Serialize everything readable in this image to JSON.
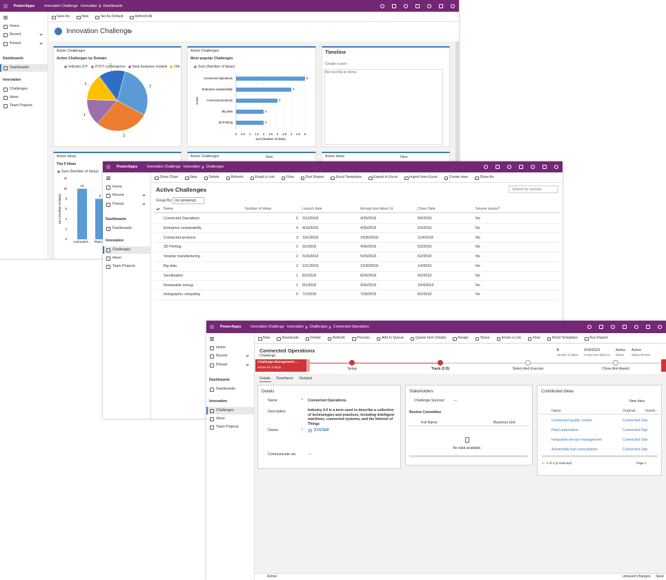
{
  "w1": {
    "app": "PowerApps",
    "appname": "Innovation Challenge",
    "crumbs": [
      "Innovation",
      "Dashboards"
    ],
    "commands": [
      "Save As",
      "New",
      "Set As Default",
      "Refresh All"
    ],
    "nav": [
      "Home",
      "Recent",
      "Pinned"
    ],
    "groups": [
      {
        "title": "Dashboards",
        "items": [
          "Dashboards"
        ]
      },
      {
        "title": "Innovation",
        "items": [
          "Challenges",
          "Ideas",
          "Team Projects"
        ]
      }
    ],
    "title": "Innovation Challenge",
    "panels": [
      "Active Challenges",
      "Active Challenges",
      "Active Ideas",
      "Active Challenges",
      "Active Ideas"
    ],
    "new": "New",
    "timeline": {
      "title": "Timeline",
      "post": "Create a post",
      "empty": "No records to show."
    },
    "pie": {
      "type": "pie",
      "title": "Active Challenges by Domain",
      "categories": [
        "Industry IOT",
        "IT/OT convergence",
        "New business models",
        "Oth",
        null
      ],
      "values": [
        2,
        2,
        1,
        1,
        1
      ],
      "colors": [
        "#5b9bd5",
        "#ed7d31",
        "#9e6fa8",
        "#ffc000",
        "#2f6ec4"
      ]
    },
    "bar": {
      "type": "bar",
      "title": "Most popular Challenges",
      "legend": "Sum (Number of ideas)",
      "categories": [
        "Connected Operations",
        "Enterprise sustainability",
        "Connected products",
        "Big data",
        "3D Printing"
      ],
      "values": [
        5,
        4,
        3,
        2,
        2
      ],
      "color": "#5b9bd5",
      "xlim": [
        0,
        5
      ],
      "xticks": [
        0,
        0.5,
        1,
        1.5,
        2,
        2.5,
        3,
        3.5,
        4,
        4.5,
        5
      ],
      "xlabel": "Sum (Number of ideas)",
      "ylabel": "Name"
    },
    "column": {
      "type": "bar",
      "title": "Top 5 Ideas",
      "legend": "Sum (Number of Ideas)",
      "categories": [
        "Connected ...",
        "Plant a..."
      ],
      "values": [
        10,
        8
      ],
      "color": "#5b9bd5",
      "ylim": [
        0,
        12
      ],
      "yticks": [
        0,
        2,
        4,
        6,
        8,
        10,
        12
      ],
      "ylabel": "Sum (Number of Ideas)"
    }
  },
  "w2": {
    "app": "PowerApps",
    "appname": "Innovation Challenge",
    "crumbs": [
      "Innovation",
      "Challenges"
    ],
    "commands": [
      "Show Chart",
      "New",
      "Delete",
      "Refresh",
      "Email a Link",
      "Flow",
      "Run Report",
      "Excel Templates",
      "Export to Excel",
      "Import from Excel",
      "Create view",
      "Show As"
    ],
    "nav": [
      "Home",
      "Recent",
      "Pinned"
    ],
    "groups": [
      {
        "title": "Dashboards",
        "items": [
          "Dashboards"
        ]
      },
      {
        "title": "Innovation",
        "items": [
          "Challenges",
          "Ideas",
          "Team Projects"
        ]
      }
    ],
    "title": "Active Challenges",
    "search": "Search for records",
    "group_by": "Group By:",
    "grouping": "(no grouping)",
    "columns": [
      "Name",
      "Number of ideas",
      "Launch date",
      "Accept new ideas Ur",
      "Close Date",
      "Severe issues?"
    ],
    "rows": [
      [
        "Connected Operations",
        5,
        "3/12/2018",
        "4/29/2018",
        "5/5/2018",
        "No"
      ],
      [
        "Enterprise sustainability",
        4,
        "4/16/2018",
        "4/30/2018",
        "5/3/2018",
        "No"
      ],
      [
        "Connected products",
        3,
        "10/1/2018",
        "10/30/2018",
        "11/4/2018",
        "No"
      ],
      [
        "3D Printing",
        2,
        "3/1/2018",
        "4/30/2018",
        "5/3/2018",
        "No"
      ],
      [
        "Smarter manufacturing",
        2,
        "5/15/2018",
        "5/29/2018",
        "6/2/2018",
        "No"
      ],
      [
        "Big data",
        2,
        "12/1/2018",
        "12/30/2018",
        "1/4/2019",
        "No"
      ],
      [
        "Servitization",
        1,
        "8/1/2018",
        "8/29/2018",
        "9/2/2018",
        "No"
      ],
      [
        "Renewable energy",
        1,
        "9/1/2018",
        "9/30/2018",
        "10/4/2018",
        "No"
      ],
      [
        "Holographic computing",
        0,
        "7/1/2018",
        "7/29/2018",
        "8/2/2018",
        "No"
      ]
    ]
  },
  "w3": {
    "app": "PowerApps",
    "appname": "Innovation Challenge",
    "crumbs": [
      "Innovation",
      "Challenges",
      "Connected Operations"
    ],
    "commands": [
      "New",
      "Deactivate",
      "Delete",
      "Refresh",
      "Process",
      "Add to Queue",
      "Queue Item Details",
      "Assign",
      "Share",
      "Email a Link",
      "Flow",
      "Word Templates",
      "Run Report"
    ],
    "nav": [
      "Home",
      "Recent",
      "Pinned"
    ],
    "groups": [
      {
        "title": "Dashboards",
        "items": [
          "Dashboards"
        ]
      },
      {
        "title": "Innovation",
        "items": [
          "Challenges",
          "Ideas",
          "Team Projects"
        ]
      }
    ],
    "record": "Connected Operations",
    "entity": "Challenge",
    "stats": [
      {
        "value": 5,
        "label": "Number of ideas"
      },
      {
        "value": "4/29/2018",
        "label": "Accept new ideas Ur"
      },
      {
        "value": "Active",
        "label": "Status"
      },
      {
        "value": "Active",
        "label": "Status Reason"
      }
    ],
    "process": {
      "name": "Challenge Management ...",
      "duration": "Active for 3 days",
      "stages": [
        "Setup",
        "Track (3 D)",
        "Select And Execute",
        "Close And Award"
      ]
    },
    "tabs": [
      "Details",
      "Timeframe",
      "Related"
    ],
    "details": {
      "title": "Details",
      "required": "*",
      "fields": [
        {
          "label": "Name",
          "value": "Connected Operations"
        },
        {
          "label": "Description",
          "value": "Industry 4.0 is a term used to describe a collection of technologies and practices, including intelligent machines, connected systems, and the Internet of Things"
        },
        {
          "label": "Owner",
          "value": "SYSTEM"
        },
        {
          "label": "Communicate via",
          "value": "---"
        }
      ]
    },
    "stakeholders": {
      "title": "Stakeholders",
      "sponsor_label": "Challenge Sponsor",
      "sponsor": "---",
      "committee": "Review Committee",
      "columns": [
        "Full Name",
        "Business Unit"
      ],
      "empty": "No data available."
    },
    "ideas": {
      "title": "Contributed Ideas",
      "new": "New Idea",
      "columns": [
        "Name",
        "Originat...",
        "Numb..."
      ],
      "rows": [
        [
          "Connected quality control",
          "Connected Ope"
        ],
        [
          "Plant automation",
          "Connected Ope"
        ],
        [
          "Integrated service management",
          "Connected Ope"
        ],
        [
          "Automobile fuel consumption",
          "Connected Ope"
        ]
      ],
      "count": "1 - 4 of 4 (0 selected)",
      "page": "Page 1"
    },
    "footer": {
      "status": "Active",
      "unsaved": "unsaved changes",
      "save": "Save"
    }
  }
}
